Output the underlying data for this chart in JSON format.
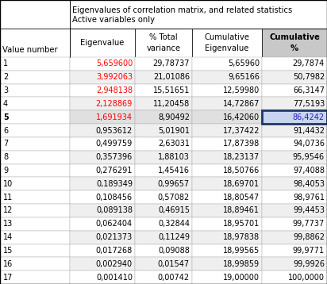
{
  "title_line1": "Eigenvalues of correlation matrix, and related statistics",
  "title_line2": "Active variables only",
  "header_row1": [
    "",
    "Eigenvalue",
    "% Total",
    "Cumulative",
    "Cumulative"
  ],
  "header_row2": [
    "Value number",
    "",
    "variance",
    "Eigenvalue",
    "%"
  ],
  "rows": [
    [
      "1",
      "5,659600",
      "29,78737",
      "5,65960",
      "29,7874"
    ],
    [
      "2",
      "3,992063",
      "21,01086",
      "9,65166",
      "50,7982"
    ],
    [
      "3",
      "2,948138",
      "15,51651",
      "12,59980",
      "66,3147"
    ],
    [
      "4",
      "2,128869",
      "11,20458",
      "14,72867",
      "77,5193"
    ],
    [
      "5",
      "1,691934",
      "8,90492",
      "16,42060",
      "86,4242"
    ],
    [
      "6",
      "0,953612",
      "5,01901",
      "17,37422",
      "91,4432"
    ],
    [
      "7",
      "0,499759",
      "2,63031",
      "17,87398",
      "94,0736"
    ],
    [
      "8",
      "0,357396",
      "1,88103",
      "18,23137",
      "95,9546"
    ],
    [
      "9",
      "0,276291",
      "1,45416",
      "18,50766",
      "97,4088"
    ],
    [
      "10",
      "0,189349",
      "0,99657",
      "18,69701",
      "98,4053"
    ],
    [
      "11",
      "0,108456",
      "0,57082",
      "18,80547",
      "98,9761"
    ],
    [
      "12",
      "0,089138",
      "0,46915",
      "18,89461",
      "99,4453"
    ],
    [
      "13",
      "0,062404",
      "0,32844",
      "18,95701",
      "99,7737"
    ],
    [
      "14",
      "0,021373",
      "0,11249",
      "18,97838",
      "99,8862"
    ],
    [
      "15",
      "0,017268",
      "0,09088",
      "18,99565",
      "99,9771"
    ],
    [
      "16",
      "0,002940",
      "0,01547",
      "18,99859",
      "99,9926"
    ],
    [
      "17",
      "0,001410",
      "0,00742",
      "19,00000",
      "100,0000"
    ]
  ],
  "red_rows": [
    0,
    1,
    2,
    3,
    4
  ],
  "bold_row": 4,
  "highlighted_cell": [
    4,
    4
  ],
  "highlight_color": "#c8d4f0",
  "highlight_border_color": "#1f3864",
  "bg_color_header": "#d9d9d9",
  "bg_col5_header": "#c8c8c8",
  "bg_color_row_even": "#ffffff",
  "bg_color_row_odd": "#efefef",
  "bg_bold_row": "#e0e0e0",
  "border_color": "#000000",
  "grid_color": "#aaaaaa",
  "text_color_normal": "#000000",
  "text_color_red": "#ff0000",
  "text_color_blue": "#2222bb",
  "font_size": 7.0,
  "header_font_size": 7.2,
  "title_font_size": 7.2,
  "fig_width": 4.12,
  "fig_height": 3.58,
  "dpi": 100
}
